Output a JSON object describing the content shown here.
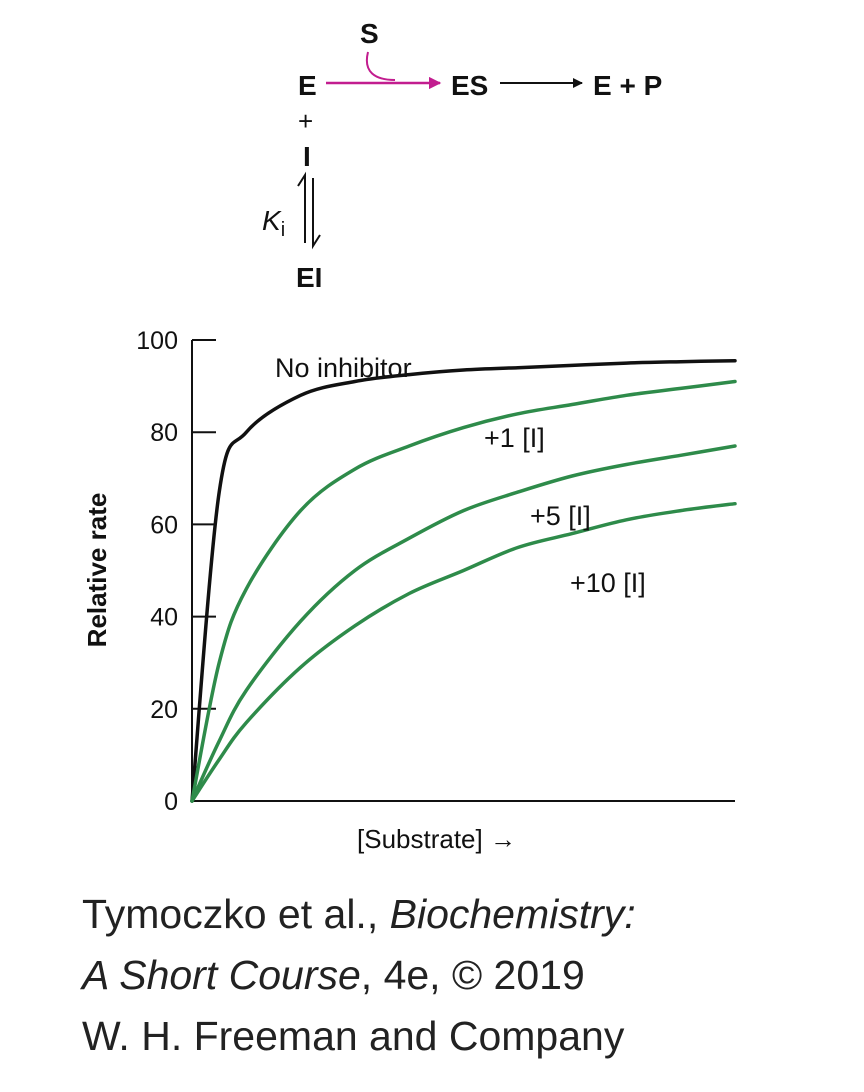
{
  "scheme": {
    "substrate": "S",
    "enzyme": "E",
    "complex": "ES",
    "products": "E + P",
    "plus": "+",
    "inhibitor": "I",
    "constant_main": "K",
    "constant_sub": "i",
    "inhibited_complex": "EI",
    "arrow_color": "#c21d8f"
  },
  "chart_data": {
    "type": "line",
    "title": "",
    "xlabel": "[Substrate] →",
    "ylabel": "Relative rate",
    "xlim": [
      0,
      1
    ],
    "ylim": [
      0,
      100
    ],
    "yticks": [
      0,
      20,
      40,
      60,
      80,
      100
    ],
    "grid": false,
    "legend": "inline labels",
    "x": [
      0,
      0.05,
      0.1,
      0.2,
      0.3,
      0.4,
      0.5,
      0.6,
      0.7,
      0.8,
      0.9,
      1.0
    ],
    "series": [
      {
        "name": "No inhibitor",
        "color": "#111111",
        "values": [
          0,
          67,
          80,
          88,
          91,
          92.5,
          93.5,
          94,
          94.5,
          95,
          95.3,
          95.5
        ]
      },
      {
        "name": "+1  [I]",
        "color": "#2e8b4a",
        "values": [
          0,
          30,
          46,
          63,
          72,
          77,
          81,
          84,
          86,
          88,
          89.5,
          91
        ]
      },
      {
        "name": "+5 [I]",
        "color": "#2e8b4a",
        "values": [
          0,
          13,
          24,
          39,
          50,
          57,
          63,
          67,
          70.5,
          73,
          75,
          77
        ]
      },
      {
        "name": "+10 [I]",
        "color": "#2e8b4a",
        "values": [
          0,
          9,
          17,
          29,
          38,
          45,
          50,
          55,
          58,
          61,
          63,
          64.5
        ]
      }
    ]
  },
  "caption": {
    "line1_plain": "Tymoczko et al., ",
    "line1_italic": "Biochemistry:",
    "line2_italic": "A Short Course",
    "line2_plain": ", 4e, © 2019",
    "line3": "W. H. Freeman and Company"
  }
}
